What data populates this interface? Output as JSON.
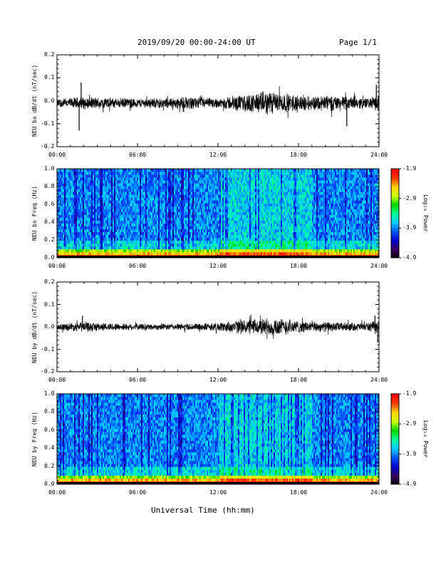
{
  "header": {
    "title": "2019/09/20  00:00-24:00 UT",
    "page_label": "Page 1/1"
  },
  "x_axis_title": "Universal Time (hh:mm)",
  "colors": {
    "trace": "#000000",
    "spectrogram_colormap": [
      "#000000",
      "#3b0060",
      "#0000c8",
      "#0055ff",
      "#00c8ff",
      "#00ff9c",
      "#00d400",
      "#c8ff00",
      "#ffd400",
      "#ff3c00",
      "#ff0000"
    ]
  },
  "chart_data": [
    {
      "type": "line",
      "name": "bx-dbdt",
      "ylabel": "NEU bx dB/dt (nT/sec)",
      "xlim": [
        0,
        24
      ],
      "ylim": [
        -0.2,
        0.2
      ],
      "x_tick_labels": [
        "00:00",
        "06:00",
        "12:00",
        "18:00",
        "24:00"
      ],
      "y_tick_labels": [
        "0.2",
        "0.1",
        "0.0",
        "-0.1",
        "-0.2"
      ],
      "y_ticks": [
        0.2,
        0.1,
        0.0,
        -0.1,
        -0.2
      ],
      "baseline": -0.01,
      "envelope_hours": [
        0,
        2,
        4,
        6,
        8,
        10,
        12,
        13,
        14,
        15,
        16,
        17,
        18,
        19,
        20,
        21,
        22,
        23,
        24
      ],
      "envelope": [
        0.02,
        0.03,
        0.025,
        0.022,
        0.025,
        0.03,
        0.022,
        0.035,
        0.04,
        0.05,
        0.06,
        0.045,
        0.04,
        0.035,
        0.04,
        0.035,
        0.03,
        0.025,
        0.035
      ],
      "spikes": [
        {
          "x": 1.65,
          "y": -0.13
        },
        {
          "x": 1.8,
          "y": 0.08
        },
        {
          "x": 21.6,
          "y": -0.11
        },
        {
          "x": 23.8,
          "y": 0.07
        }
      ]
    },
    {
      "type": "heatmap",
      "name": "bx-spectrogram",
      "ylabel": "NEU bx Freq (Hz)",
      "xlim": [
        0,
        24
      ],
      "ylim": [
        0,
        1
      ],
      "x_tick_labels": [
        "00:00",
        "06:00",
        "12:00",
        "18:00",
        "24:00"
      ],
      "y_tick_labels": [
        "1.0",
        "0.8",
        "0.6",
        "0.4",
        "0.2",
        "0.0"
      ],
      "y_ticks": [
        1.0,
        0.8,
        0.6,
        0.4,
        0.2,
        0.0
      ],
      "colorbar": {
        "label": "Log₁₀ Power",
        "range": [
          -4.9,
          -1.9
        ],
        "tick_labels": [
          "-1.9",
          "-2.9",
          "-3.9",
          "-4.9"
        ],
        "ticks": [
          -1.9,
          -2.9,
          -3.9,
          -4.9
        ]
      }
    },
    {
      "type": "line",
      "name": "by-dbdt",
      "ylabel": "NEU by dB/dt (nT/sec)",
      "xlim": [
        0,
        24
      ],
      "ylim": [
        -0.2,
        0.2
      ],
      "x_tick_labels": [
        "00:00",
        "06:00",
        "12:00",
        "18:00",
        "24:00"
      ],
      "y_tick_labels": [
        "0.2",
        "0.1",
        "0.0",
        "-0.1",
        "-0.2"
      ],
      "y_ticks": [
        0.2,
        0.1,
        0.0,
        -0.1,
        -0.2
      ],
      "baseline": 0.0,
      "envelope_hours": [
        0,
        2,
        4,
        6,
        8,
        10,
        12,
        13,
        14,
        15,
        16,
        17,
        18,
        19,
        20,
        21,
        22,
        23,
        24
      ],
      "envelope": [
        0.015,
        0.025,
        0.018,
        0.016,
        0.015,
        0.017,
        0.02,
        0.03,
        0.035,
        0.04,
        0.045,
        0.04,
        0.03,
        0.025,
        0.025,
        0.022,
        0.02,
        0.02,
        0.03
      ],
      "spikes": [
        {
          "x": 1.9,
          "y": 0.05
        },
        {
          "x": 23.9,
          "y": -0.07
        },
        {
          "x": 23.7,
          "y": 0.05
        }
      ]
    },
    {
      "type": "heatmap",
      "name": "by-spectrogram",
      "ylabel": "NEU by Freq (Hz)",
      "xlim": [
        0,
        24
      ],
      "ylim": [
        0,
        1
      ],
      "x_tick_labels": [
        "00:00",
        "06:00",
        "12:00",
        "18:00",
        "24:00"
      ],
      "y_tick_labels": [
        "1.0",
        "0.8",
        "0.6",
        "0.4",
        "0.2",
        "0.0"
      ],
      "y_ticks": [
        1.0,
        0.8,
        0.6,
        0.4,
        0.2,
        0.0
      ],
      "colorbar": {
        "label": "Log₁₀ Power",
        "range": [
          -4.9,
          -1.9
        ],
        "tick_labels": [
          "-1.9",
          "-2.9",
          "-3.9",
          "-4.9"
        ],
        "ticks": [
          -1.9,
          -2.9,
          -3.9,
          -4.9
        ]
      }
    }
  ]
}
